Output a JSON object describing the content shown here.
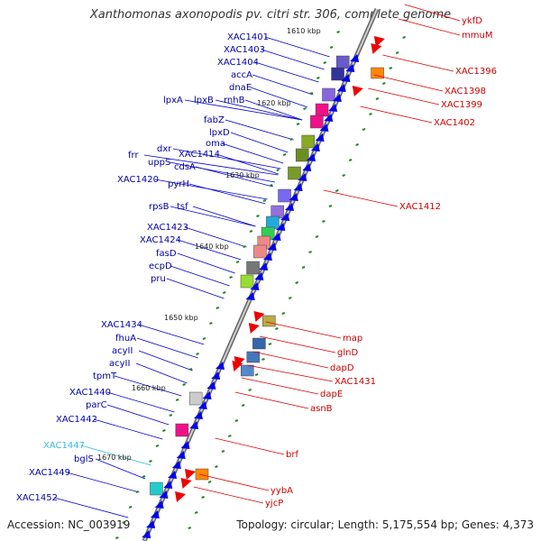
{
  "title": "Xanthomonas axonopodis pv. citri str. 306, complete genome",
  "accession": "Accession: NC_003919",
  "topology": "Topology: circular; Length: 5,175,554 bp; Genes: 4,373",
  "colors": {
    "left_label": "#0000aa",
    "right_label": "#cc0000",
    "highlight_label": "#33bbdd",
    "leader_left": "#0000cc",
    "leader_right": "#dd0000",
    "backbone": "#888888",
    "tick": "#228822"
  },
  "kbp_ticks": [
    {
      "label": "1610 kbp"
    },
    {
      "label": "1620 kbp"
    },
    {
      "label": "1630 kbp"
    },
    {
      "label": "1640 kbp"
    },
    {
      "label": "1650 kbp"
    },
    {
      "label": "1660 kbp"
    },
    {
      "label": "1670 kbp"
    }
  ],
  "left_labels": [
    {
      "text": "XAC1401"
    },
    {
      "text": "XAC1403"
    },
    {
      "text": "XAC1404"
    },
    {
      "text": "accA"
    },
    {
      "text": "dnaE"
    },
    {
      "text": "rnhB"
    },
    {
      "text": "lpxA"
    },
    {
      "text": "lpxB"
    },
    {
      "text": "fabZ"
    },
    {
      "text": "lpxD"
    },
    {
      "text": "oma"
    },
    {
      "text": "dxr"
    },
    {
      "text": "XAC1414"
    },
    {
      "text": "frr"
    },
    {
      "text": "uppS"
    },
    {
      "text": "cdsA"
    },
    {
      "text": "XAC1420"
    },
    {
      "text": "pyrH"
    },
    {
      "text": "rpsB"
    },
    {
      "text": "tsf"
    },
    {
      "text": "XAC1423"
    },
    {
      "text": "XAC1424"
    },
    {
      "text": "fasD"
    },
    {
      "text": "ecpD"
    },
    {
      "text": "pru"
    },
    {
      "text": "XAC1434"
    },
    {
      "text": "fhuA"
    },
    {
      "text": "acyII"
    },
    {
      "text": "acyII"
    },
    {
      "text": "tpmT"
    },
    {
      "text": "XAC1440"
    },
    {
      "text": "parC"
    },
    {
      "text": "XAC1442"
    },
    {
      "text": "XAC1447"
    },
    {
      "text": "bglS"
    },
    {
      "text": "XAC1449"
    },
    {
      "text": "XAC1452"
    }
  ],
  "right_labels": [
    {
      "text": "ykfD"
    },
    {
      "text": "mmuM"
    },
    {
      "text": "XAC1396"
    },
    {
      "text": "XAC1398"
    },
    {
      "text": "XAC1399"
    },
    {
      "text": "XAC1402"
    },
    {
      "text": "XAC1412"
    },
    {
      "text": "map"
    },
    {
      "text": "glnD"
    },
    {
      "text": "dapD"
    },
    {
      "text": "XAC1431"
    },
    {
      "text": "dapE"
    },
    {
      "text": "asnB"
    },
    {
      "text": "brf"
    },
    {
      "text": "yybA"
    },
    {
      "text": "yjcP"
    }
  ]
}
